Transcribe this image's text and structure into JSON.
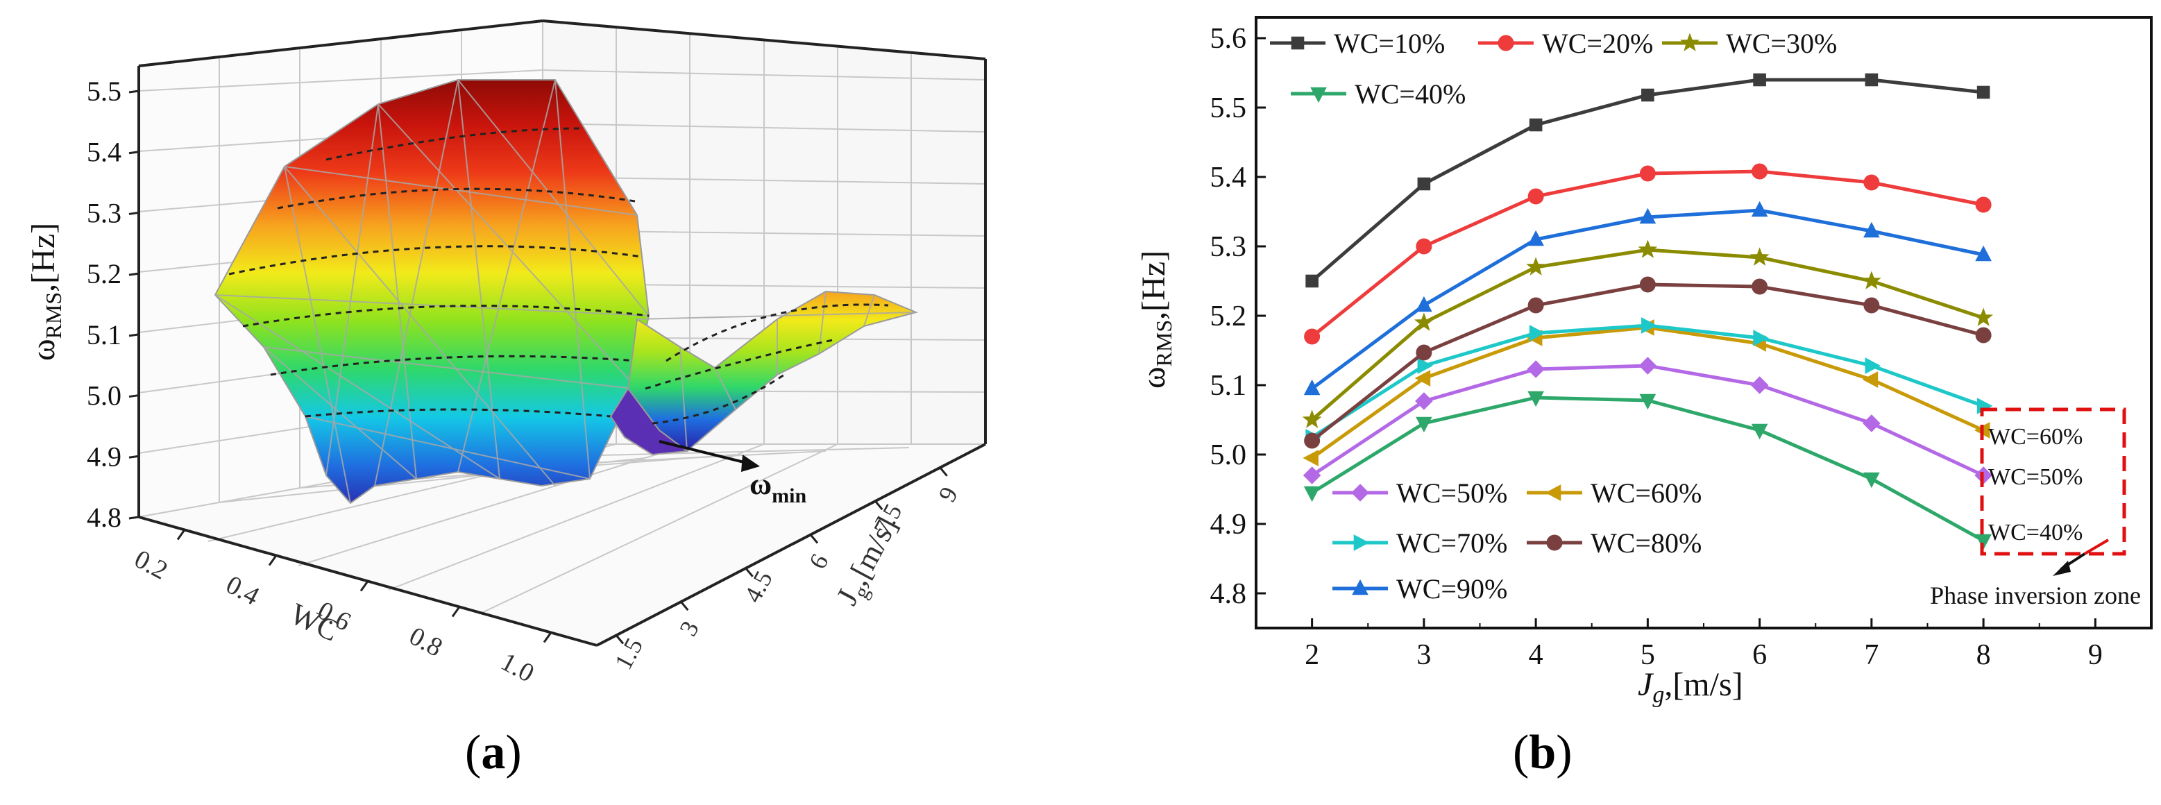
{
  "panel_labels": {
    "a_open": "(",
    "a_letter": "a",
    "a_close": ")",
    "b_open": "(",
    "b_letter": "b",
    "b_close": ")"
  },
  "chart_data": [
    {
      "id": "a",
      "type": "surface3d",
      "title": "",
      "zlabel_main": "ω",
      "zlabel_sub": "RMS",
      "zlabel_unit": ",[Hz]",
      "z_ticks": [
        "4.8",
        "4.9",
        "5.0",
        "5.1",
        "5.2",
        "5.3",
        "5.4",
        "5.5"
      ],
      "zlim": [
        4.8,
        5.55
      ],
      "wc_label": "WC",
      "wc_ticks": [
        "0.2",
        "0.4",
        "0.6",
        "0.8",
        "1.0"
      ],
      "jg_label": "J",
      "jg_label_sub": "g",
      "jg_label_unit": ",[m/s]",
      "jg_ticks": [
        "1.5",
        "3",
        "4.5",
        "6",
        "7.5",
        "9"
      ],
      "annotation_main": "ω",
      "annotation_sub": "min",
      "colors": [
        "#2a1fa8",
        "#1f6fe0",
        "#14c8e6",
        "#2fd86a",
        "#8fe21e",
        "#f2ea1a",
        "#f7a21e",
        "#ee3a18",
        "#c8140c",
        "#8a0a06"
      ]
    },
    {
      "id": "b",
      "type": "line",
      "xlabel_main": "J",
      "xlabel_sub": "g",
      "xlabel_unit": ",[m/s]",
      "ylabel_main": "ω",
      "ylabel_sub": "RMS",
      "ylabel_unit": ",[Hz]",
      "xlim": [
        1.5,
        9.5
      ],
      "ylim": [
        4.75,
        5.63
      ],
      "x_ticks": [
        2,
        3,
        4,
        5,
        6,
        7,
        8,
        9
      ],
      "y_ticks": [
        4.8,
        4.9,
        5.0,
        5.1,
        5.2,
        5.3,
        5.4,
        5.5,
        5.6
      ],
      "y_tick_labels": [
        "4.8",
        "4.9",
        "5.0",
        "5.1",
        "5.2",
        "5.3",
        "5.4",
        "5.5",
        "5.6"
      ],
      "x": [
        2,
        3,
        4,
        5,
        6,
        7,
        8
      ],
      "series": [
        {
          "name": "WC=10%",
          "color": "#3c3c3c",
          "marker": "square",
          "values": [
            5.25,
            5.39,
            5.475,
            5.518,
            5.54,
            5.54,
            5.522
          ]
        },
        {
          "name": "WC=20%",
          "color": "#ee3b3b",
          "marker": "circle",
          "values": [
            5.17,
            5.3,
            5.372,
            5.405,
            5.408,
            5.392,
            5.36
          ]
        },
        {
          "name": "WC=30%",
          "color": "#8b8b00",
          "marker": "star",
          "values": [
            5.05,
            5.19,
            5.27,
            5.295,
            5.284,
            5.25,
            5.197
          ]
        },
        {
          "name": "WC=40%",
          "color": "#2ea86a",
          "marker": "triangle-down",
          "values": [
            4.945,
            5.045,
            5.082,
            5.078,
            5.035,
            4.965,
            4.876
          ]
        },
        {
          "name": "WC=50%",
          "color": "#b369e6",
          "marker": "diamond",
          "values": [
            4.97,
            5.077,
            5.123,
            5.128,
            5.1,
            5.045,
            4.97
          ]
        },
        {
          "name": "WC=60%",
          "color": "#c89a08",
          "marker": "triangle-left",
          "values": [
            4.995,
            5.11,
            5.168,
            5.183,
            5.16,
            5.108,
            5.035
          ]
        },
        {
          "name": "WC=70%",
          "color": "#1fc8c8",
          "marker": "triangle-right",
          "values": [
            5.025,
            5.128,
            5.175,
            5.186,
            5.168,
            5.128,
            5.07
          ]
        },
        {
          "name": "WC=80%",
          "color": "#7a4040",
          "marker": "circle",
          "values": [
            5.02,
            5.147,
            5.215,
            5.245,
            5.242,
            5.215,
            5.172
          ]
        },
        {
          "name": "WC=90%",
          "color": "#1e6fd9",
          "marker": "triangle-up",
          "values": [
            5.095,
            5.215,
            5.31,
            5.342,
            5.352,
            5.322,
            5.288
          ]
        }
      ],
      "zone_labels": [
        "WC=60%",
        "WC=50%",
        "WC=40%"
      ],
      "annotation": "Phase inversion zone",
      "zone_color": "#e01010"
    }
  ]
}
